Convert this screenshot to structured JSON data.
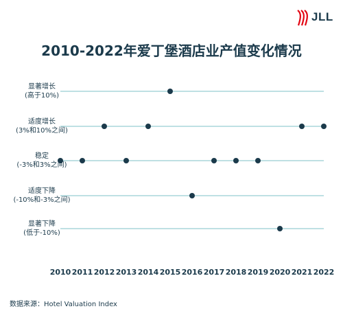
{
  "brand": "JLL",
  "chart_data": {
    "type": "scatter",
    "title": "2010-2022年爱丁堡酒店业产值变化情况",
    "categories": [
      {
        "line1": "显著增长",
        "line2": "(高于10%)"
      },
      {
        "line1": "适度增长",
        "line2": "(3%和10%之间)"
      },
      {
        "line1": "稳定",
        "line2": "(-3%和3%之间)"
      },
      {
        "line1": "适度下降",
        "line2": "(-10%和-3%之间)"
      },
      {
        "line1": "显著下降",
        "line2": "(低于-10%)"
      }
    ],
    "x_ticks": [
      2010,
      2011,
      2012,
      2013,
      2014,
      2015,
      2016,
      2017,
      2018,
      2019,
      2020,
      2021,
      2022
    ],
    "xlim": [
      2010,
      2022
    ],
    "points": [
      {
        "year": 2010,
        "category": 2
      },
      {
        "year": 2011,
        "category": 2
      },
      {
        "year": 2012,
        "category": 1
      },
      {
        "year": 2013,
        "category": 2
      },
      {
        "year": 2014,
        "category": 1
      },
      {
        "year": 2015,
        "category": 0
      },
      {
        "year": 2016,
        "category": 3
      },
      {
        "year": 2017,
        "category": 2
      },
      {
        "year": 2018,
        "category": 2
      },
      {
        "year": 2019,
        "category": 2
      },
      {
        "year": 2020,
        "category": 4
      },
      {
        "year": 2021,
        "category": 1
      },
      {
        "year": 2022,
        "category": 1
      }
    ],
    "grid": false,
    "colors": {
      "line": "#a9d5da",
      "dot": "#1b3a4b",
      "text": "#1b3a4b",
      "brand": "#e30613"
    }
  },
  "source": "数据来源：Hotel Valuation Index"
}
